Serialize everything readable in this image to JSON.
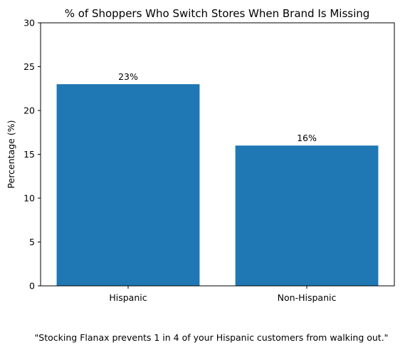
{
  "chart_data": {
    "type": "bar",
    "title": "% of Shoppers Who Switch Stores When Brand Is Missing",
    "categories": [
      "Hispanic",
      "Non-Hispanic"
    ],
    "values": [
      23,
      16
    ],
    "value_labels": [
      "23%",
      "16%"
    ],
    "xlabel": "",
    "ylabel": "Percentage (%)",
    "ylim": [
      0,
      30
    ],
    "yticks": [
      0,
      5,
      10,
      15,
      20,
      25,
      30
    ],
    "grid": false,
    "bar_color": "#1f77b4"
  },
  "caption": "\"Stocking Flanax prevents 1 in 4 of your Hispanic customers from walking out.\""
}
